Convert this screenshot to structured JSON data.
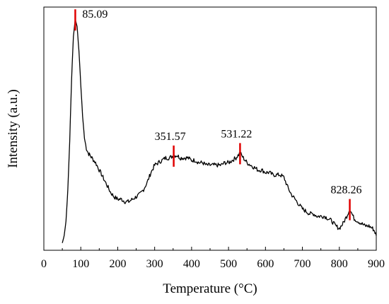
{
  "chart_data": {
    "type": "line",
    "title": "",
    "xlabel": "Temperature (°C)",
    "ylabel": "Intensity (a.u.)",
    "xlim": [
      0,
      900
    ],
    "x_ticks": [
      0,
      100,
      200,
      300,
      400,
      500,
      600,
      700,
      800,
      900
    ],
    "y_ticks_shown": false,
    "grid": false,
    "legend": "none",
    "line_color": "#000000",
    "marker_color": "#e00000",
    "series": [
      {
        "x": [
          50,
          55,
          60,
          65,
          70,
          75,
          80,
          85.09,
          90,
          95,
          100,
          105,
          110,
          115,
          120,
          125,
          130,
          140,
          150,
          160,
          170,
          180,
          190,
          200,
          210,
          220,
          230,
          240,
          250,
          260,
          270,
          280,
          290,
          300,
          310,
          320,
          330,
          340,
          351.57,
          360,
          370,
          380,
          390,
          400,
          410,
          420,
          430,
          440,
          450,
          460,
          470,
          480,
          490,
          500,
          510,
          520,
          531.22,
          540,
          550,
          560,
          570,
          580,
          590,
          600,
          610,
          620,
          630,
          640,
          650,
          660,
          670,
          680,
          690,
          700,
          710,
          720,
          730,
          740,
          750,
          760,
          770,
          780,
          790,
          800,
          810,
          820,
          828.26,
          840,
          850,
          860,
          870,
          880,
          890,
          895,
          900
        ],
        "y": [
          0.03,
          0.06,
          0.12,
          0.25,
          0.45,
          0.7,
          0.88,
          0.95,
          0.92,
          0.82,
          0.68,
          0.55,
          0.46,
          0.42,
          0.4,
          0.39,
          0.38,
          0.36,
          0.33,
          0.3,
          0.27,
          0.24,
          0.22,
          0.21,
          0.21,
          0.2,
          0.2,
          0.21,
          0.22,
          0.23,
          0.25,
          0.28,
          0.32,
          0.35,
          0.36,
          0.37,
          0.38,
          0.38,
          0.39,
          0.39,
          0.38,
          0.38,
          0.38,
          0.37,
          0.37,
          0.36,
          0.36,
          0.35,
          0.35,
          0.35,
          0.35,
          0.35,
          0.36,
          0.36,
          0.37,
          0.38,
          0.4,
          0.38,
          0.36,
          0.35,
          0.34,
          0.33,
          0.33,
          0.32,
          0.32,
          0.31,
          0.31,
          0.31,
          0.3,
          0.26,
          0.23,
          0.21,
          0.19,
          0.17,
          0.16,
          0.15,
          0.15,
          0.14,
          0.14,
          0.14,
          0.13,
          0.12,
          0.1,
          0.09,
          0.11,
          0.14,
          0.17,
          0.13,
          0.12,
          0.11,
          0.1,
          0.1,
          0.09,
          0.08,
          0.06
        ]
      }
    ],
    "peaks": [
      {
        "x": 85.09,
        "label": "85.09"
      },
      {
        "x": 351.57,
        "label": "351.57"
      },
      {
        "x": 531.22,
        "label": "531.22"
      },
      {
        "x": 828.26,
        "label": "828.26"
      }
    ]
  }
}
